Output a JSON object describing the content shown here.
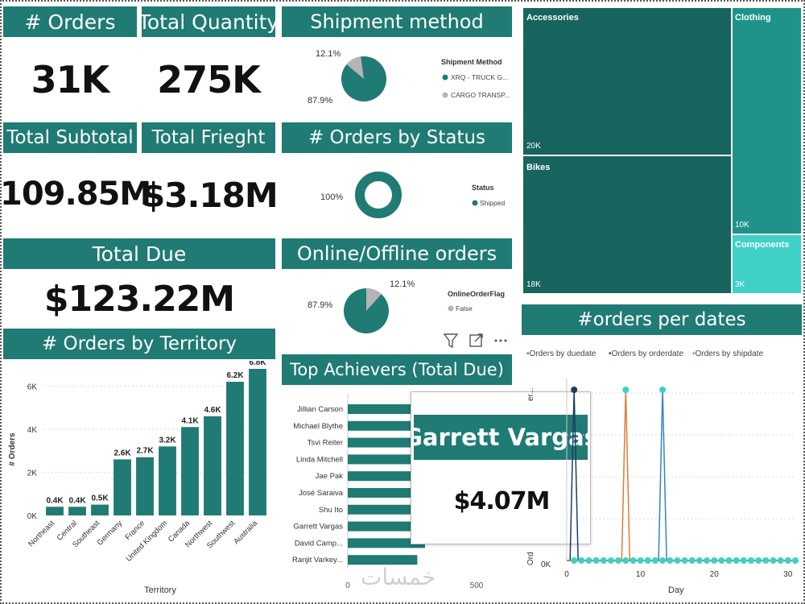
{
  "kpis": {
    "orders": {
      "title": "# Orders",
      "value": "31K"
    },
    "quantity": {
      "title": "Total Quantity",
      "value": "275K"
    },
    "subtotal": {
      "title": "Total Subtotal",
      "value": "109.85M"
    },
    "freight": {
      "title": "Total Frieght",
      "value": "$3.18M"
    },
    "due": {
      "title": "Total Due",
      "value": "$123.22M"
    }
  },
  "shipment": {
    "title": "Shipment method",
    "legend_title": "Shipment Method",
    "legend_items": [
      "XRQ - TRUCK G...",
      "CARGO TRANSP..."
    ],
    "labels": [
      "87.9%",
      "12.1%"
    ],
    "colors": [
      "#1f7b74",
      "#b4b4b4"
    ]
  },
  "status": {
    "title": "# Orders by Status",
    "legend_title": "Status",
    "legend_items": [
      "Shipped"
    ],
    "labels": [
      "100%"
    ]
  },
  "online": {
    "title": "Online/Offline orders",
    "legend_title": "OnlineOrderFlag",
    "legend_items": [
      "False"
    ],
    "labels": [
      "87.9%",
      "12.1%"
    ]
  },
  "territory": {
    "title": "# Orders by Territory"
  },
  "achievers": {
    "title": "Top Achievers (Total Due)",
    "tooltip_name": "Garrett Vargas",
    "tooltip_value": "$4.07M",
    "axis_ticks": [
      "0",
      "500"
    ]
  },
  "treemap": {
    "items": [
      {
        "name": "Accessories",
        "value": "20K"
      },
      {
        "name": "Clothing",
        "value": "10K"
      },
      {
        "name": "Bikes",
        "value": "18K"
      },
      {
        "name": "Components",
        "value": "3K"
      }
    ]
  },
  "dates": {
    "title": "#orders per dates",
    "legend": [
      "Orders by duedate",
      "Orders by orderdate",
      "Orders by shipdate"
    ],
    "xlabel": "Day",
    "ylabel_partial": "Ord",
    "ylabel_partial_top": "er...",
    "x_ticks": [
      "0",
      "10",
      "20",
      "30"
    ],
    "y_tick": "0K"
  },
  "watermark": "خمسات",
  "chart_data": [
    {
      "type": "bar",
      "title": "# Orders by Territory",
      "xlabel": "Territory",
      "ylabel": "# Orders",
      "categories": [
        "Northeast",
        "Central",
        "Southeast",
        "Germany",
        "France",
        "United Kingdom",
        "Canada",
        "Northwest",
        "Southwest",
        "Australia"
      ],
      "values": [
        0.4,
        0.4,
        0.5,
        2.6,
        2.7,
        3.2,
        4.1,
        4.6,
        6.2,
        6.8
      ],
      "value_labels": [
        "0.4K",
        "0.4K",
        "0.5K",
        "2.6K",
        "2.7K",
        "3.2K",
        "4.1K",
        "4.6K",
        "6.2K",
        "6.8K"
      ],
      "y_ticks": [
        "0K",
        "2K",
        "4K",
        "6K"
      ],
      "ylim": [
        0,
        6.8
      ],
      "unit": "K",
      "color": "#1f7b74"
    },
    {
      "type": "bar",
      "orientation": "horizontal",
      "title": "Top Achievers (Total Due)",
      "categories": [
        "Jillian Carson",
        "Michael Blythe",
        "Tsvi Reiter",
        "Linda Mitchell",
        "Jae Pak",
        "José Saraiva",
        "Shu Ito",
        "Garrett Vargas",
        "David Camp...",
        "Ranjit Varkey..."
      ],
      "values": [
        440,
        430,
        420,
        400,
        380,
        370,
        350,
        330,
        300,
        270
      ],
      "xlim": [
        0,
        500
      ],
      "color": "#1f7b74"
    },
    {
      "type": "pie",
      "title": "Shipment method",
      "labels": [
        "XRQ - TRUCK G...",
        "CARGO TRANSP..."
      ],
      "values": [
        87.9,
        12.1
      ]
    },
    {
      "type": "pie",
      "title": "# Orders by Status",
      "labels": [
        "Shipped"
      ],
      "values": [
        100
      ],
      "donut": true
    },
    {
      "type": "pie",
      "title": "Online/Offline orders",
      "labels": [
        "False",
        "True"
      ],
      "values": [
        87.9,
        12.1
      ]
    },
    {
      "type": "treemap",
      "labels": [
        "Accessories",
        "Bikes",
        "Clothing",
        "Components"
      ],
      "values": [
        20,
        18,
        10,
        3
      ],
      "unit": "K"
    },
    {
      "type": "line",
      "title": "#orders per dates",
      "xlabel": "Day",
      "xlim": [
        0,
        31
      ],
      "series": [
        {
          "name": "Orders by duedate",
          "color": "#3a7fc8",
          "spike_x": 13
        },
        {
          "name": "Orders by orderdate",
          "color": "#1b3f66",
          "spike_x": 1
        },
        {
          "name": "Orders by shipdate",
          "color": "#e07b39",
          "spike_x": 8
        }
      ]
    }
  ]
}
